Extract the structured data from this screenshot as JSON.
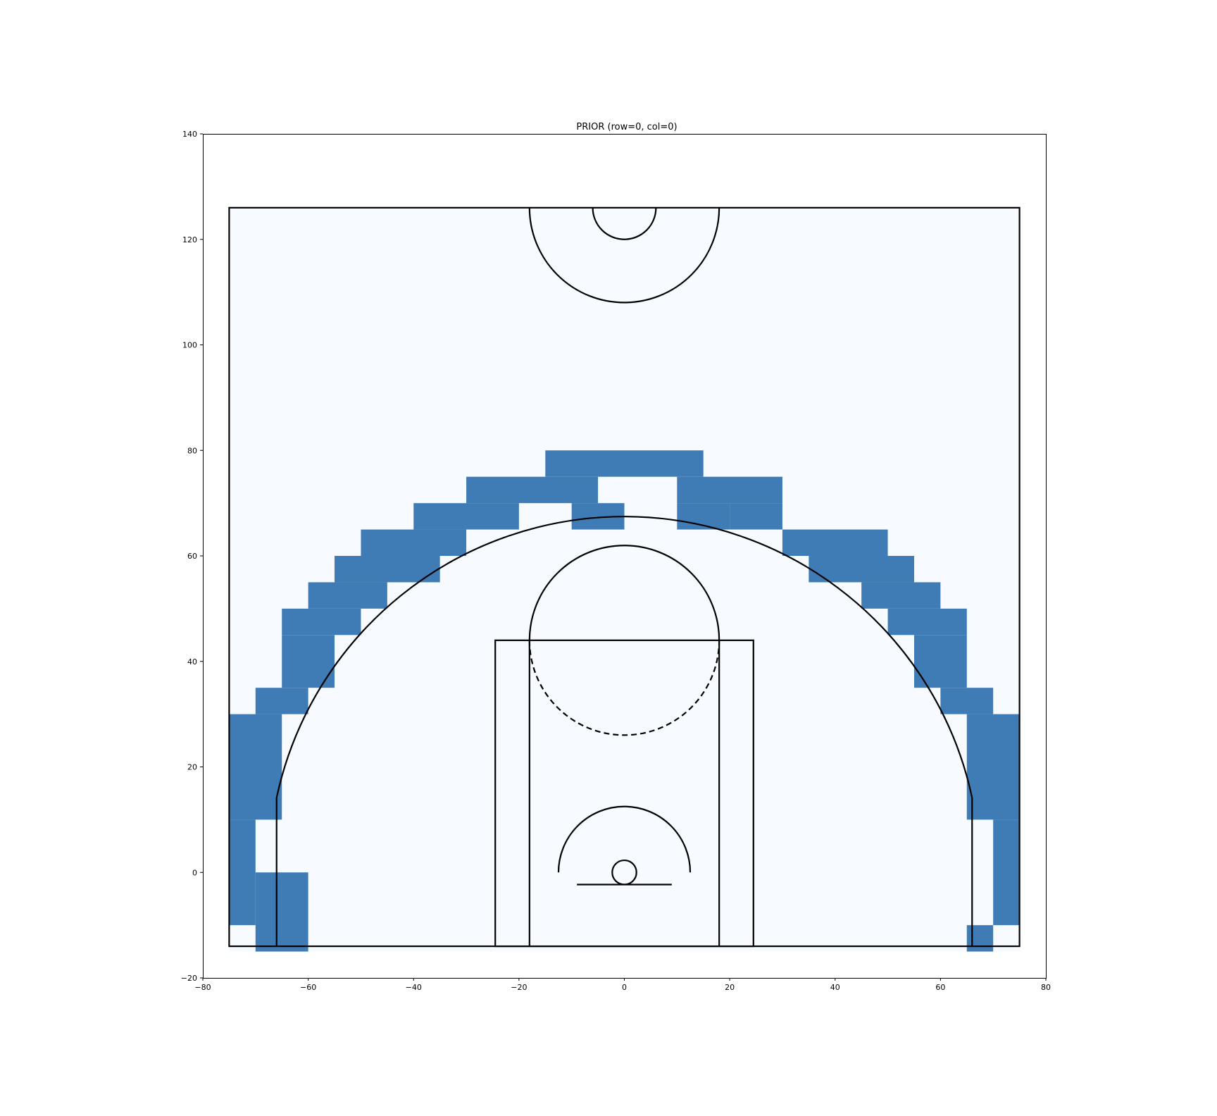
{
  "chart_data": {
    "type": "heatmap",
    "title": "PRIOR (row=0, col=0)",
    "xlabel": "",
    "ylabel": "",
    "xlim": [
      -80,
      80
    ],
    "ylim": [
      -20,
      140
    ],
    "x_ticks": [
      "−80",
      "−60",
      "−40",
      "−20",
      "0",
      "20",
      "40",
      "60",
      "80"
    ],
    "y_ticks": [
      "−20",
      "0",
      "20",
      "40",
      "60",
      "80",
      "100",
      "120",
      "140"
    ],
    "grid": false,
    "colors": {
      "low": "#f7fbff",
      "high": "#3f7cb5",
      "court_lines": "#000000"
    },
    "region_extent": {
      "x": [
        -75,
        75
      ],
      "y": [
        -15,
        126
      ]
    },
    "cell_size": {
      "x": 5,
      "y": 5
    },
    "heat_cells": [
      [
        -15,
        75,
        30,
        5
      ],
      [
        -30,
        70,
        25,
        5
      ],
      [
        10,
        70,
        20,
        5
      ],
      [
        -40,
        65,
        20,
        5
      ],
      [
        -10,
        65,
        10,
        5
      ],
      [
        10,
        65,
        10,
        5
      ],
      [
        20,
        65,
        10,
        5
      ],
      [
        -50,
        60,
        20,
        5
      ],
      [
        30,
        60,
        20,
        5
      ],
      [
        -55,
        55,
        20,
        5
      ],
      [
        35,
        55,
        20,
        5
      ],
      [
        -60,
        50,
        15,
        5
      ],
      [
        45,
        50,
        15,
        5
      ],
      [
        -65,
        45,
        15,
        5
      ],
      [
        50,
        45,
        15,
        5
      ],
      [
        -65,
        35,
        10,
        10
      ],
      [
        55,
        35,
        10,
        10
      ],
      [
        -70,
        30,
        10,
        5
      ],
      [
        60,
        30,
        10,
        5
      ],
      [
        -75,
        10,
        10,
        20
      ],
      [
        65,
        10,
        10,
        20
      ],
      [
        -75,
        -10,
        5,
        20
      ],
      [
        70,
        -10,
        5,
        20
      ],
      [
        -70,
        -15,
        10,
        15
      ],
      [
        65,
        -15,
        5,
        5
      ]
    ]
  }
}
